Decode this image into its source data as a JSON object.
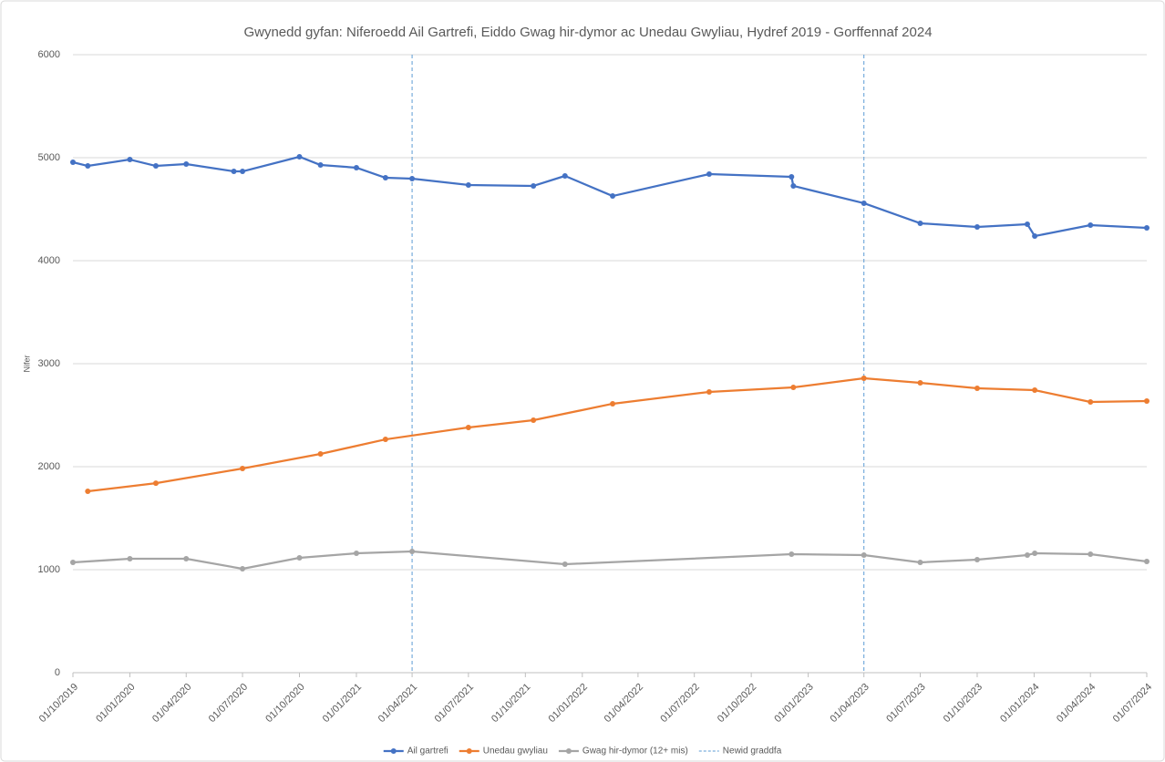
{
  "chart_data": {
    "type": "line",
    "title": "Gwynedd gyfan: Niferoedd Ail Gartrefi, Eiddo Gwag hir-dymor ac Unedau Gwyliau, Hydref 2019 - Gorffennaf 2024",
    "ylabel": "Nifer",
    "xlim": [
      "2019-10-01",
      "2024-07-01"
    ],
    "xticks": [
      {
        "value": "2019-10-01",
        "label": "01/10/2019"
      },
      {
        "value": "2020-01-01",
        "label": "01/01/2020"
      },
      {
        "value": "2020-04-01",
        "label": "01/04/2020"
      },
      {
        "value": "2020-07-01",
        "label": "01/07/2020"
      },
      {
        "value": "2020-10-01",
        "label": "01/10/2020"
      },
      {
        "value": "2021-01-01",
        "label": "01/01/2021"
      },
      {
        "value": "2021-04-01",
        "label": "01/04/2021"
      },
      {
        "value": "2021-07-01",
        "label": "01/07/2021"
      },
      {
        "value": "2021-10-01",
        "label": "01/10/2021"
      },
      {
        "value": "2022-01-01",
        "label": "01/01/2022"
      },
      {
        "value": "2022-04-01",
        "label": "01/04/2022"
      },
      {
        "value": "2022-07-01",
        "label": "01/07/2022"
      },
      {
        "value": "2022-10-01",
        "label": "01/10/2022"
      },
      {
        "value": "2023-01-01",
        "label": "01/01/2023"
      },
      {
        "value": "2023-04-01",
        "label": "01/04/2023"
      },
      {
        "value": "2023-07-01",
        "label": "01/07/2023"
      },
      {
        "value": "2023-10-01",
        "label": "01/10/2023"
      },
      {
        "value": "2024-01-01",
        "label": "01/01/2024"
      },
      {
        "value": "2024-04-01",
        "label": "01/04/2024"
      },
      {
        "value": "2024-07-01",
        "label": "01/07/2024"
      }
    ],
    "ylim": [
      0,
      6000
    ],
    "yticks": [
      0,
      1000,
      2000,
      3000,
      4000,
      5000,
      6000
    ],
    "grid": true,
    "legend": "bottom",
    "series": [
      {
        "name": "Ail gartrefi",
        "color": "#4472c4",
        "x": [
          "2019-10-01",
          "2019-10-25",
          "2020-01-01",
          "2020-02-12",
          "2020-04-01",
          "2020-06-17",
          "2020-07-01",
          "2020-10-01",
          "2020-11-04",
          "2021-01-01",
          "2021-02-17",
          "2021-04-01",
          "2021-07-01",
          "2021-10-14",
          "2021-12-04",
          "2022-02-19",
          "2022-07-25",
          "2022-12-05",
          "2022-12-08",
          "2023-04-01",
          "2023-07-01",
          "2023-10-01",
          "2023-12-21",
          "2024-01-02",
          "2024-04-01",
          "2024-07-01"
        ],
        "values": [
          4956,
          4920,
          4982,
          4920,
          4938,
          4867,
          4867,
          5009,
          4929,
          4903,
          4805,
          4796,
          4735,
          4726,
          4823,
          4628,
          4841,
          4814,
          4726,
          4558,
          4363,
          4327,
          4354,
          4239,
          4345,
          4319
        ]
      },
      {
        "name": "Unedau gwyliau",
        "color": "#ed7d31",
        "x": [
          "2019-10-25",
          "2020-02-12",
          "2020-07-01",
          "2020-11-04",
          "2021-02-17",
          "2021-07-01",
          "2021-10-14",
          "2022-02-19",
          "2022-07-25",
          "2022-12-08",
          "2023-04-01",
          "2023-07-01",
          "2023-10-01",
          "2024-01-02",
          "2024-04-01",
          "2024-07-01"
        ],
        "values": [
          1761,
          1840,
          1982,
          2124,
          2265,
          2381,
          2451,
          2611,
          2726,
          2770,
          2858,
          2814,
          2761,
          2743,
          2628,
          2637
        ]
      },
      {
        "name": "Gwag hir-dymor (12+ mis)",
        "color": "#a5a5a5",
        "x": [
          "2019-10-01",
          "2020-01-01",
          "2020-04-01",
          "2020-07-01",
          "2020-10-01",
          "2021-01-01",
          "2021-04-01",
          "2021-12-04",
          "2022-12-05",
          "2023-04-01",
          "2023-07-01",
          "2023-10-01",
          "2023-12-21",
          "2024-01-02",
          "2024-04-01",
          "2024-07-01"
        ],
        "values": [
          1071,
          1106,
          1106,
          1009,
          1115,
          1159,
          1177,
          1053,
          1150,
          1142,
          1071,
          1097,
          1142,
          1159,
          1150,
          1080
        ]
      }
    ],
    "reference_lines": {
      "name": "Newid graddfa",
      "color": "#5b9bd5",
      "x": [
        "2021-04-01",
        "2023-04-01"
      ]
    }
  }
}
